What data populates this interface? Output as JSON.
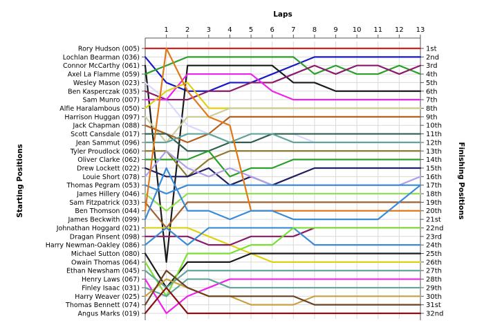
{
  "chart_data": {
    "type": "line",
    "title": "",
    "xlabel": "Laps",
    "ylabel_left": "Starting Positions",
    "ylabel_right": "Finishing Positions",
    "x": [
      0,
      1,
      2,
      3,
      4,
      5,
      6,
      7,
      8,
      9,
      10,
      11,
      12,
      13
    ],
    "x_tick_labels": [
      "1",
      "2",
      "3",
      "4",
      "5",
      "6",
      "7",
      "8",
      "9",
      "10",
      "11",
      "12",
      "13"
    ],
    "drivers": [
      "Rory Hudson (005)",
      "Lochlan Bearman (036)",
      "Connor McCarthy (061)",
      "Axel La Flamme (059)",
      "Wesley Mason (023)",
      "Ben Kasperczak (035)",
      "Sam Munro (007)",
      "Alfie Haralambous (050)",
      "Harrison Huggan (097)",
      "Jack Chapman (088)",
      "Scott Cansdale (017)",
      "Jean Sammut (096)",
      "Tyler Proudlock (060)",
      "Oliver Clarke (062)",
      "Drew Lockett (022)",
      "Louie Short (078)",
      "Thomas Pegram (053)",
      "James Hillery (046)",
      "Sam Fitzpatrick (033)",
      "Ben Thomson (044)",
      "James Beckwith (099)",
      "Johnathan Hoggard (021)",
      "Dragan Pinsent (098)",
      "Harry Newman-Oakley (086)",
      "Michael Sutton (080)",
      "Owain Thomas (064)",
      "Ethan Newsham (045)",
      "Henry Laws (067)",
      "Finley Isaac (031)",
      "Harry Weaver (025)",
      "Thomas Bennett (074)",
      "Angus Marks (019)"
    ],
    "finishing_labels": [
      "1st",
      "2nd",
      "3rd",
      "4th",
      "5th",
      "6th",
      "7th",
      "8th",
      "9th",
      "10th",
      "11th",
      "12th",
      "13th",
      "14th",
      "15th",
      "16th",
      "17th",
      "18th",
      "19th",
      "20th",
      "21st",
      "22nd",
      "23rd",
      "24th",
      "25th",
      "26th",
      "27th",
      "28th",
      "29th",
      "30th",
      "31st",
      "32nd"
    ],
    "ylim": [
      1,
      32
    ],
    "grid": true,
    "series": [
      {
        "color": "#d42020",
        "values": [
          1,
          1,
          1,
          1,
          1,
          1,
          1,
          1,
          1,
          1,
          1,
          1,
          1,
          1
        ]
      },
      {
        "color": "#1818c8",
        "values": [
          2,
          5,
          6,
          6,
          5,
          5,
          4,
          3,
          2,
          2,
          2,
          2,
          2,
          2
        ]
      },
      {
        "color": "#1a1a1a",
        "values": [
          3,
          26,
          3,
          3,
          3,
          3,
          3,
          5,
          5,
          6,
          6,
          6,
          6,
          6
        ]
      },
      {
        "color": "#2aa02a",
        "values": [
          4,
          3,
          2,
          2,
          2,
          2,
          2,
          2,
          4,
          3,
          4,
          4,
          3,
          4
        ]
      },
      {
        "color": "#d8d8ff",
        "values": [
          5,
          7,
          10,
          11,
          12,
          12,
          11,
          11,
          12,
          12,
          12,
          12,
          12,
          12
        ]
      },
      {
        "color": "#8a1a6a",
        "values": [
          6,
          7,
          7,
          6,
          6,
          5,
          5,
          4,
          3,
          4,
          3,
          3,
          4,
          3
        ]
      },
      {
        "color": "#ee22ee",
        "values": [
          7,
          7,
          4,
          4,
          4,
          4,
          6,
          7,
          7,
          7,
          7,
          7,
          7,
          7
        ]
      },
      {
        "color": "#e0d010",
        "values": [
          8,
          6,
          5,
          8,
          8,
          8,
          8,
          8,
          8,
          8,
          8,
          8,
          8,
          8
        ]
      },
      {
        "color": "#cccc99",
        "values": [
          9,
          12,
          9,
          9,
          8,
          8,
          8,
          8,
          8,
          8,
          8,
          8,
          8,
          8
        ]
      },
      {
        "color": "#b06020",
        "values": [
          10,
          11,
          12,
          11,
          9,
          9,
          9,
          9,
          9,
          9,
          9,
          9,
          9,
          9
        ]
      },
      {
        "color": "#2f5f4f",
        "values": [
          11,
          11,
          13,
          13,
          12,
          12,
          11,
          11,
          11,
          11,
          11,
          11,
          11,
          11
        ]
      },
      {
        "color": "#5fa59a",
        "values": [
          12,
          12,
          11,
          11,
          12,
          11,
          11,
          12,
          12,
          12,
          12,
          12,
          12,
          12
        ]
      },
      {
        "color": "#8a7a2a",
        "values": [
          13,
          13,
          16,
          14,
          13,
          13,
          13,
          13,
          13,
          13,
          13,
          13,
          13,
          13
        ]
      },
      {
        "color": "#2aa02a",
        "values": [
          14,
          14,
          14,
          13,
          16,
          15,
          15,
          14,
          14,
          14,
          14,
          14,
          14,
          14
        ]
      },
      {
        "color": "#202060",
        "values": [
          15,
          16,
          16,
          15,
          17,
          16,
          17,
          16,
          15,
          15,
          15,
          15,
          15,
          15
        ]
      },
      {
        "color": "#b0a0e8",
        "values": [
          16,
          13,
          15,
          16,
          15,
          16,
          17,
          17,
          17,
          17,
          17,
          17,
          17,
          16
        ]
      },
      {
        "color": "#3a8ad8",
        "values": [
          17,
          18,
          17,
          17,
          17,
          17,
          17,
          17,
          17,
          17,
          17,
          17,
          17,
          17
        ]
      },
      {
        "color": "#90e050",
        "values": [
          18,
          20,
          18,
          18,
          18,
          18,
          18,
          18,
          18,
          18,
          18,
          18,
          18,
          18
        ]
      },
      {
        "color": "#a06030",
        "values": [
          19,
          22,
          19,
          19,
          19,
          19,
          19,
          19,
          19,
          19,
          19,
          19,
          19,
          19
        ]
      },
      {
        "color": "#e07818",
        "values": [
          20,
          1,
          6,
          9,
          10,
          20,
          20,
          20,
          20,
          20,
          20,
          20,
          20,
          20
        ]
      },
      {
        "color": "#3a8ad8",
        "values": [
          21,
          15,
          20,
          20,
          21,
          20,
          20,
          21,
          21,
          21,
          21,
          21,
          19,
          17
        ]
      },
      {
        "color": "#e0d010",
        "values": [
          22,
          22,
          22,
          23,
          24,
          25,
          26,
          26,
          26,
          26,
          26,
          26,
          26,
          26
        ]
      },
      {
        "color": "#8a1a6a",
        "values": [
          23,
          23,
          23,
          24,
          24,
          23,
          23,
          23,
          22,
          22,
          22,
          22,
          22,
          22
        ]
      },
      {
        "color": "#3a8ad8",
        "values": [
          24,
          22,
          24,
          22,
          22,
          22,
          22,
          22,
          24,
          24,
          24,
          24,
          24,
          24
        ]
      },
      {
        "color": "#1a1a1a",
        "values": [
          25,
          29,
          26,
          26,
          26,
          25,
          25,
          25,
          25,
          25,
          25,
          25,
          25,
          25
        ]
      },
      {
        "color": "#7ae030",
        "values": [
          26,
          30,
          25,
          25,
          25,
          24,
          24,
          22,
          22,
          22,
          22,
          22,
          22,
          22
        ]
      },
      {
        "color": "#5fa59a",
        "values": [
          27,
          29,
          27,
          27,
          27,
          27,
          27,
          27,
          27,
          27,
          27,
          27,
          27,
          27
        ]
      },
      {
        "color": "#ee22ee",
        "values": [
          28,
          32,
          30,
          29,
          28,
          28,
          28,
          28,
          28,
          28,
          28,
          28,
          28,
          28
        ]
      },
      {
        "color": "#5fa59a",
        "values": [
          29,
          30,
          28,
          28,
          29,
          29,
          29,
          29,
          29,
          29,
          29,
          29,
          29,
          29
        ]
      },
      {
        "color": "#c8a040",
        "values": [
          30,
          28,
          29,
          30,
          30,
          31,
          31,
          31,
          30,
          30,
          30,
          30,
          30,
          30
        ]
      },
      {
        "color": "#6a4020",
        "values": [
          31,
          27,
          29,
          30,
          30,
          30,
          30,
          30,
          31,
          31,
          31,
          31,
          31,
          31
        ]
      },
      {
        "color": "#8a1010",
        "values": [
          32,
          29,
          32,
          32,
          32,
          32,
          32,
          32,
          32,
          32,
          32,
          32,
          32,
          32
        ]
      }
    ]
  }
}
